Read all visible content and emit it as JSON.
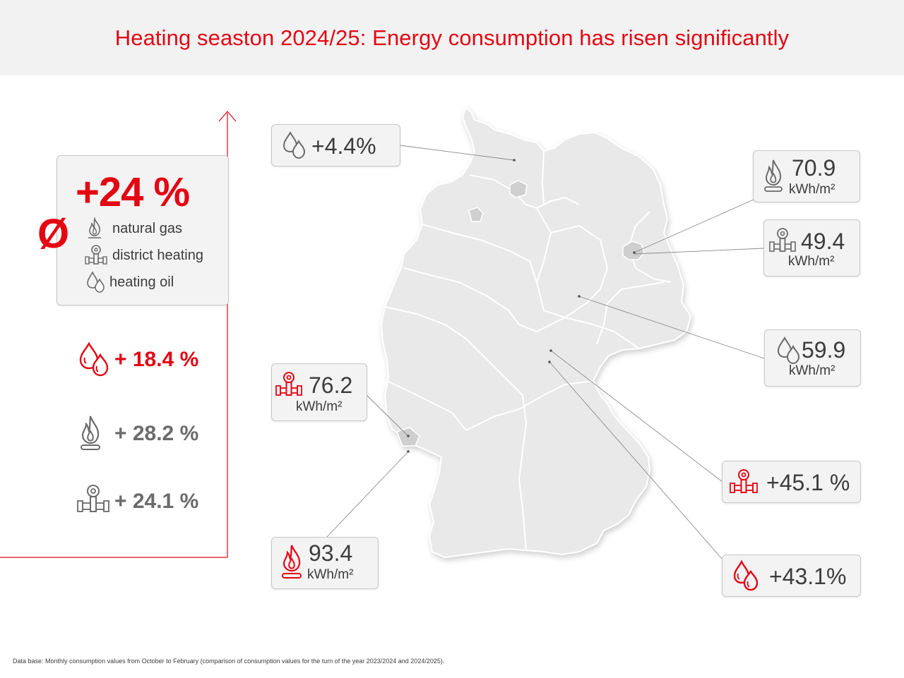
{
  "title": "Heating seaston 2024/25: Energy consumption has risen significantly",
  "average": {
    "value": "+24 %",
    "symbol": "Ø",
    "legend": [
      {
        "icon": "flame-icon",
        "label": "natural gas"
      },
      {
        "icon": "district-heating-icon",
        "label": "district heating"
      },
      {
        "icon": "oil-drops-icon",
        "label": "heating oil"
      }
    ]
  },
  "changes": [
    {
      "icon": "oil-drops-icon",
      "label": "+ 18.4 %",
      "color": "#e30613"
    },
    {
      "icon": "flame-icon",
      "label": "+ 28.2 %",
      "color": "#6b6b6b"
    },
    {
      "icon": "district-heating-icon",
      "label": "+ 24.1 %",
      "color": "#6b6b6b"
    }
  ],
  "callouts": {
    "north_oil": {
      "icon": "oil-drops-icon",
      "value": "+4.4%"
    },
    "east_gas": {
      "icon": "flame-icon",
      "value": "70.9",
      "unit": "kWh/m²"
    },
    "berlin_district": {
      "icon": "district-heating-icon",
      "value": "49.4",
      "unit": "kWh/m²"
    },
    "east_oil": {
      "icon": "oil-drops-icon",
      "value": "59.9",
      "unit": "kWh/m²"
    },
    "west_district": {
      "icon": "district-heating-icon",
      "value": "76.2",
      "unit": "kWh/m²"
    },
    "south_district": {
      "icon": "district-heating-icon",
      "value": "+45.1 %"
    },
    "southwest_gas": {
      "icon": "flame-icon",
      "value": "93.4",
      "unit": "kWh/m²"
    },
    "south_oil": {
      "icon": "oil-drops-icon",
      "value": "+43.1%"
    }
  },
  "colors": {
    "accent": "#e30613",
    "gray_icon": "#6b6b6b",
    "map_fill": "#e8e8e8",
    "box_bg": "#f3f3f3"
  },
  "footnote": "Data base: Monthly consumption values from October to February (comparison of consumption values for the turn of the year 2023/2024 and 2024/2025)."
}
